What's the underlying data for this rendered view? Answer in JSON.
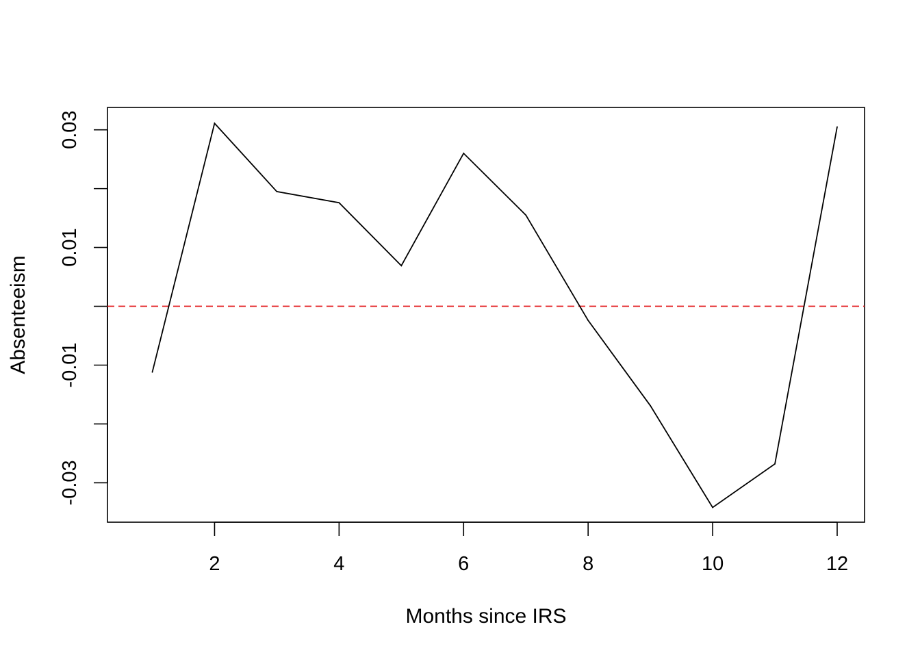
{
  "chart_data": {
    "type": "line",
    "title": "",
    "xlabel": "Months since IRS",
    "ylabel": "Absenteeism",
    "x": [
      1,
      2,
      3,
      4,
      5,
      6,
      7,
      8,
      9,
      10,
      11,
      12
    ],
    "series": [
      {
        "values": [
          -0.0112,
          0.0311,
          0.0195,
          0.0176,
          0.0069,
          0.026,
          0.0155,
          -0.0024,
          -0.0169,
          -0.0342,
          -0.0268,
          0.0305
        ],
        "color": "#000000"
      }
    ],
    "reference_line": {
      "y": 0,
      "color": "#e31a1c",
      "style": "dashed"
    },
    "xlim": [
      0.28,
      12.44
    ],
    "ylim": [
      -0.0367,
      0.0338
    ],
    "x_ticks": [
      2,
      4,
      6,
      8,
      10,
      12
    ],
    "x_tick_labels": [
      "2",
      "4",
      "6",
      "8",
      "10",
      "12"
    ],
    "y_ticks": [
      -0.03,
      -0.02,
      -0.01,
      0,
      0.01,
      0.02,
      0.03
    ],
    "y_tick_labels": [
      "-0.03",
      "",
      "-0.01",
      "",
      "0.01",
      "",
      "0.03"
    ],
    "grid": false,
    "legend": "none"
  }
}
